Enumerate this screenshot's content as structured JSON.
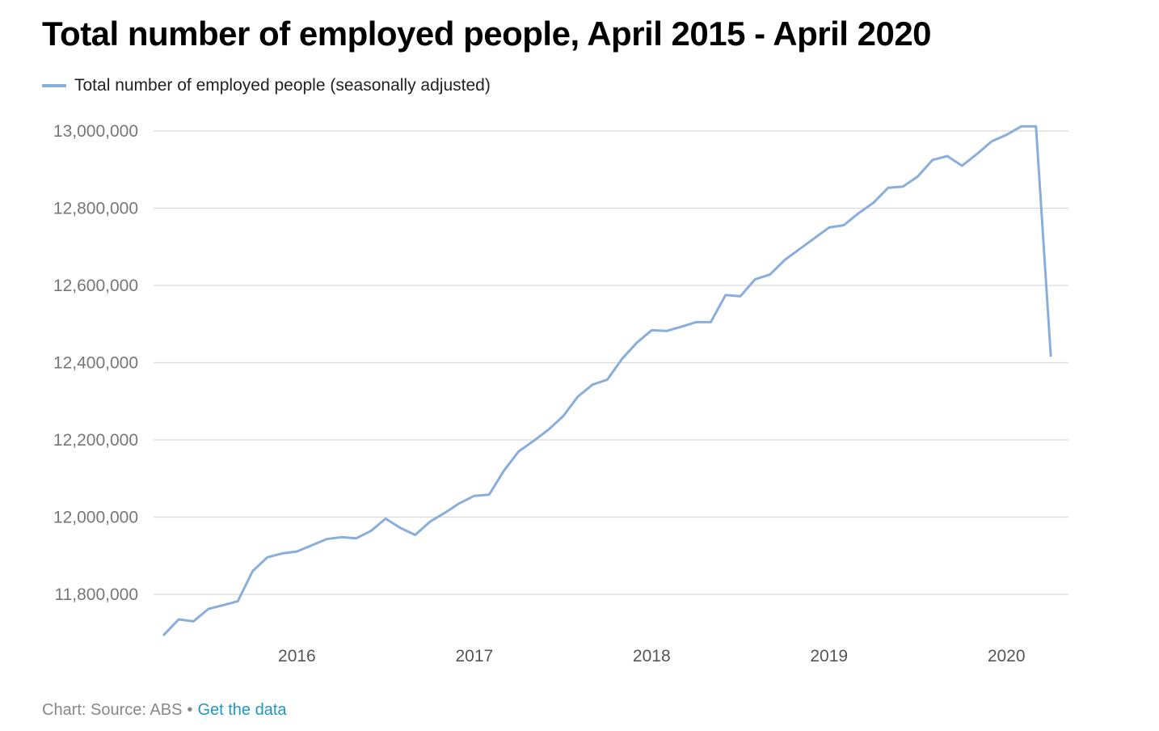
{
  "chart_data": {
    "type": "line",
    "title": "Total number of employed people, April 2015 - April 2020",
    "xlabel": "",
    "ylabel": "",
    "ylim": [
      11700000,
      13000000
    ],
    "yticks": [
      11800000,
      12000000,
      12200000,
      12400000,
      12600000,
      12800000,
      13000000
    ],
    "ytick_labels": [
      "11,800,000",
      "12,000,000",
      "12,200,000",
      "12,400,000",
      "12,600,000",
      "12,800,000",
      "13,000,000"
    ],
    "xticks": [
      "2016-01",
      "2017-01",
      "2018-01",
      "2019-01",
      "2020-01"
    ],
    "xtick_labels": [
      "2016",
      "2017",
      "2018",
      "2019",
      "2020"
    ],
    "grid": true,
    "legend_position": "top-left",
    "x": [
      "2015-04",
      "2015-05",
      "2015-06",
      "2015-07",
      "2015-08",
      "2015-09",
      "2015-10",
      "2015-11",
      "2015-12",
      "2016-01",
      "2016-02",
      "2016-03",
      "2016-04",
      "2016-05",
      "2016-06",
      "2016-07",
      "2016-08",
      "2016-09",
      "2016-10",
      "2016-11",
      "2016-12",
      "2017-01",
      "2017-02",
      "2017-03",
      "2017-04",
      "2017-05",
      "2017-06",
      "2017-07",
      "2017-08",
      "2017-09",
      "2017-10",
      "2017-11",
      "2017-12",
      "2018-01",
      "2018-02",
      "2018-03",
      "2018-04",
      "2018-05",
      "2018-06",
      "2018-07",
      "2018-08",
      "2018-09",
      "2018-10",
      "2018-11",
      "2018-12",
      "2019-01",
      "2019-02",
      "2019-03",
      "2019-04",
      "2019-05",
      "2019-06",
      "2019-07",
      "2019-08",
      "2019-09",
      "2019-10",
      "2019-11",
      "2019-12",
      "2020-01",
      "2020-02",
      "2020-03",
      "2020-04"
    ],
    "series": [
      {
        "name": "Total number of employed people (seasonally adjusted)",
        "color": "#8aaedc",
        "values": [
          11695000,
          11735000,
          11730000,
          11762000,
          11772000,
          11782000,
          11860000,
          11896000,
          11906000,
          11911000,
          11927000,
          11943000,
          11948000,
          11945000,
          11964000,
          11996000,
          11972000,
          11954000,
          11988000,
          12011000,
          12036000,
          12055000,
          12058000,
          12120000,
          12170000,
          12197000,
          12226000,
          12261000,
          12312000,
          12343000,
          12356000,
          12410000,
          12452000,
          12484000,
          12482000,
          12493000,
          12505000,
          12505000,
          12575000,
          12572000,
          12616000,
          12628000,
          12666000,
          12694000,
          12722000,
          12750000,
          12756000,
          12787000,
          12814000,
          12853000,
          12856000,
          12882000,
          12925000,
          12935000,
          12910000,
          12940000,
          12973000,
          12990000,
          13012000,
          13012000,
          12418000
        ]
      }
    ]
  },
  "footer": {
    "source_text": "Chart: Source: ABS",
    "separator": "•",
    "link_label": "Get the data",
    "link_color": "#1f97c1"
  }
}
